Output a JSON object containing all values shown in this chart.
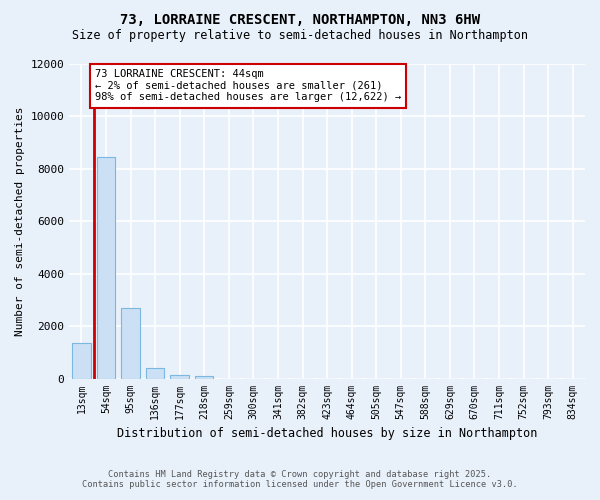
{
  "title1": "73, LORRAINE CRESCENT, NORTHAMPTON, NN3 6HW",
  "title2": "Size of property relative to semi-detached houses in Northampton",
  "xlabel": "Distribution of semi-detached houses by size in Northampton",
  "ylabel": "Number of semi-detached properties",
  "categories": [
    "13sqm",
    "54sqm",
    "95sqm",
    "136sqm",
    "177sqm",
    "218sqm",
    "259sqm",
    "300sqm",
    "341sqm",
    "382sqm",
    "423sqm",
    "464sqm",
    "505sqm",
    "547sqm",
    "588sqm",
    "629sqm",
    "670sqm",
    "711sqm",
    "752sqm",
    "793sqm",
    "834sqm"
  ],
  "values": [
    1350,
    8450,
    2700,
    400,
    130,
    100,
    0,
    0,
    0,
    0,
    0,
    0,
    0,
    0,
    0,
    0,
    0,
    0,
    0,
    0,
    0
  ],
  "bar_color": "#cce0f5",
  "bar_edge_color": "#7ab8e0",
  "marker_line_color": "#cc0000",
  "ylim": [
    0,
    12000
  ],
  "yticks": [
    0,
    2000,
    4000,
    6000,
    8000,
    10000,
    12000
  ],
  "annotation_title": "73 LORRAINE CRESCENT: 44sqm",
  "annotation_line1": "← 2% of semi-detached houses are smaller (261)",
  "annotation_line2": "98% of semi-detached houses are larger (12,622) →",
  "footnote1": "Contains HM Land Registry data © Crown copyright and database right 2025.",
  "footnote2": "Contains public sector information licensed under the Open Government Licence v3.0.",
  "bg_color": "#e8f0fa",
  "plot_bg_color": "#e8f0fa",
  "grid_color": "#ffffff"
}
